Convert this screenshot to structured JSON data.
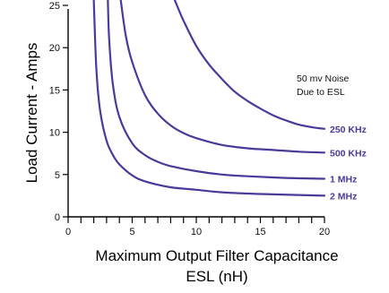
{
  "chart_data": {
    "type": "line",
    "title": "",
    "xlabel": "Maximum Output Filter Capacitance ESL (nH)",
    "xlabel_lines": [
      "Maximum Output Filter Capacitance",
      "ESL (nH)"
    ],
    "ylabel": "Load Current - Amps",
    "xlim": [
      0,
      20
    ],
    "ylim": [
      0,
      25
    ],
    "xticks": [
      0,
      5,
      10,
      15,
      20
    ],
    "yticks": [
      0,
      5,
      10,
      15,
      20,
      25
    ],
    "grid": false,
    "annotation": [
      "50 mv Noise",
      "Due to ESL"
    ],
    "series": [
      {
        "name": "250 KHz",
        "color": "#4a3a9a",
        "x": [
          8.3,
          9,
          10,
          11,
          12,
          13,
          14,
          15,
          16,
          17,
          18,
          19,
          20
        ],
        "y": [
          25.7,
          23.2,
          20.2,
          18.0,
          16.3,
          14.8,
          13.7,
          12.8,
          12.0,
          11.4,
          10.9,
          10.6,
          10.4
        ]
      },
      {
        "name": "500 KHz",
        "color": "#4a3a9a",
        "x": [
          4.1,
          4.5,
          5,
          6,
          7,
          8,
          9,
          10,
          12,
          14,
          16,
          18,
          20
        ],
        "y": [
          25.7,
          21.4,
          18.3,
          14.4,
          12.2,
          10.8,
          9.9,
          9.3,
          8.5,
          8.1,
          7.9,
          7.7,
          7.6
        ]
      },
      {
        "name": "1 MHz",
        "color": "#4a3a9a",
        "x": [
          3.1,
          3.2,
          3.5,
          4,
          5,
          6,
          7,
          8,
          10,
          12,
          14,
          17,
          20
        ],
        "y": [
          25.7,
          21.0,
          15.6,
          11.8,
          8.7,
          7.3,
          6.5,
          6.0,
          5.4,
          5.0,
          4.8,
          4.6,
          4.5
        ]
      },
      {
        "name": "2 MHz",
        "color": "#4a3a9a",
        "x": [
          2.0,
          2.2,
          2.5,
          3,
          3.5,
          4,
          5,
          6,
          8,
          10,
          12,
          15,
          20
        ],
        "y": [
          25.7,
          17.5,
          12.5,
          9.0,
          7.3,
          6.2,
          4.9,
          4.2,
          3.5,
          3.2,
          2.9,
          2.7,
          2.5
        ]
      }
    ]
  }
}
